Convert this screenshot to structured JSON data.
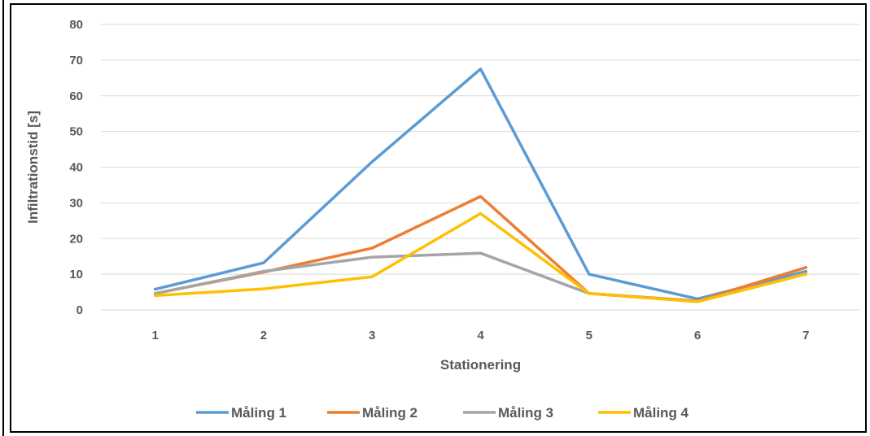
{
  "chart_data": {
    "type": "line",
    "title": "",
    "xlabel": "Stationering",
    "ylabel": "Infiltrationstid [s]",
    "categories": [
      "1",
      "2",
      "3",
      "4",
      "5",
      "6",
      "7"
    ],
    "ylim": [
      0,
      80
    ],
    "yticks": [
      0,
      10,
      20,
      30,
      40,
      50,
      60,
      70,
      80
    ],
    "grid": true,
    "legend_position": "bottom",
    "series": [
      {
        "name": "Måling 1",
        "color": "#5b9bd5",
        "values": [
          5.8,
          13.2,
          41.5,
          67.5,
          10.0,
          3.1,
          10.8
        ]
      },
      {
        "name": "Måling 2",
        "color": "#ed7d31",
        "values": [
          4.6,
          10.6,
          17.3,
          31.8,
          4.6,
          2.5,
          11.9
        ]
      },
      {
        "name": "Måling 3",
        "color": "#a5a5a5",
        "values": [
          4.6,
          10.8,
          14.8,
          15.9,
          4.6,
          2.4,
          10.2
        ]
      },
      {
        "name": "Måling 4",
        "color": "#ffc000",
        "values": [
          4.0,
          5.9,
          9.3,
          27.0,
          4.6,
          2.3,
          10.0
        ]
      }
    ]
  }
}
